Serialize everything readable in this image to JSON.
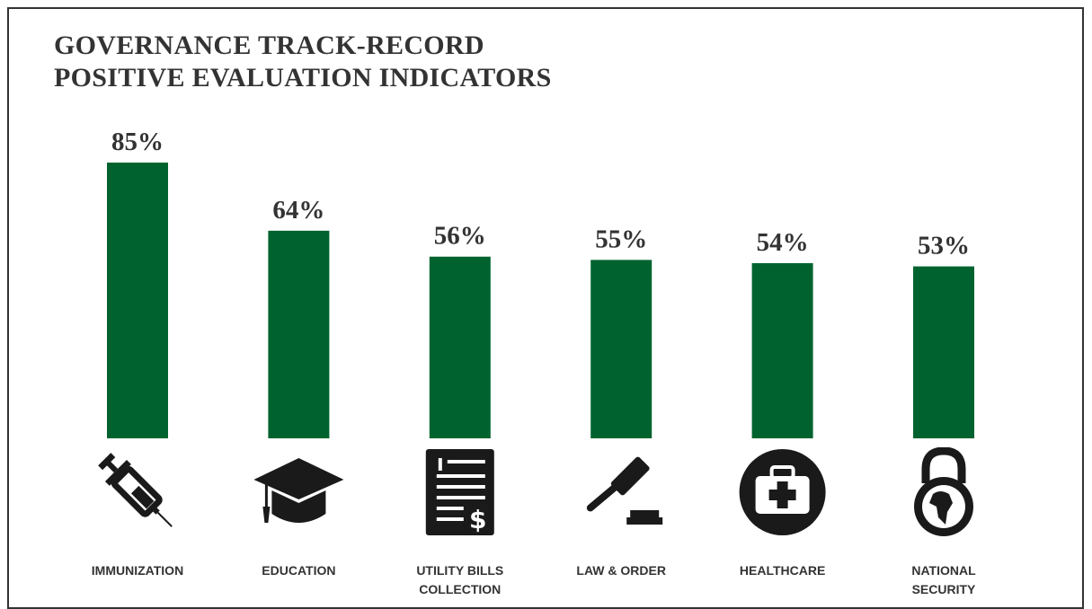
{
  "chart_data": {
    "type": "bar",
    "title": [
      "GOVERNANCE TRACK-RECORD",
      "POSITIVE EVALUATION INDICATORS"
    ],
    "categories": [
      "IMMUNIZATION",
      "EDUCATION",
      "UTILITY BILLS COLLECTION",
      "LAW & ORDER",
      "HEALTHCARE",
      "NATIONAL SECURITY"
    ],
    "category_lines": [
      [
        "IMMUNIZATION"
      ],
      [
        "EDUCATION"
      ],
      [
        "UTILITY BILLS",
        "COLLECTION"
      ],
      [
        "LAW & ORDER"
      ],
      [
        "HEALTHCARE"
      ],
      [
        "NATIONAL",
        "SECURITY"
      ]
    ],
    "values": [
      85,
      64,
      56,
      55,
      54,
      53
    ],
    "value_labels": [
      "85%",
      "64%",
      "56%",
      "55%",
      "54%",
      "53%"
    ],
    "icons": [
      "syringe-icon",
      "graduation-cap-icon",
      "bill-icon",
      "gavel-icon",
      "medical-kit-icon",
      "globe-lock-icon"
    ],
    "bar_color": "#00632f",
    "xlabel": "",
    "ylabel": "",
    "grid": false,
    "legend": "none"
  }
}
